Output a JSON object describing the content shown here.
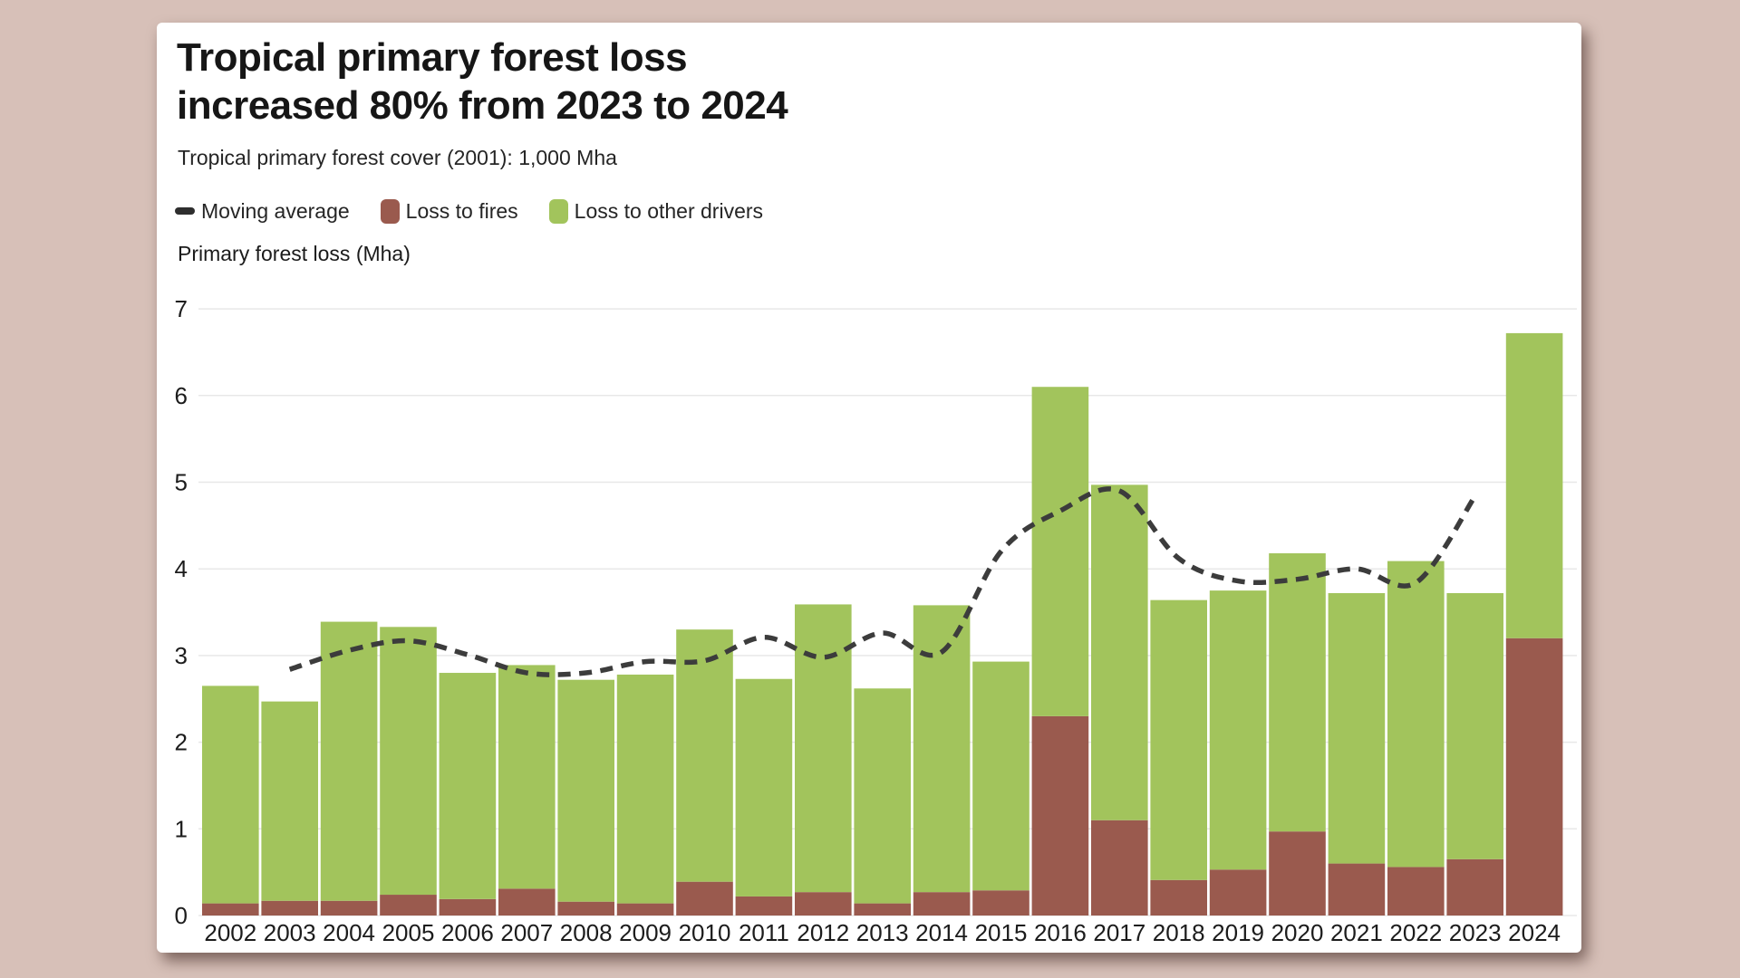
{
  "page": {
    "background_color": "#d7c0b8",
    "card_color": "#ffffff"
  },
  "header": {
    "title_line1": "Tropical primary forest loss",
    "title_line2": "increased 80% from 2023 to 2024",
    "subtitle": "Tropical primary forest cover (2001): 1,000 Mha"
  },
  "legend": {
    "items": [
      {
        "label": "Moving average",
        "marker": "dash",
        "color": "#2e2e2e"
      },
      {
        "label": "Loss to fires",
        "marker": "square",
        "color": "#9a5a4e"
      },
      {
        "label": "Loss to other drivers",
        "marker": "square",
        "color": "#a2c45c"
      }
    ]
  },
  "chart_data": {
    "type": "bar",
    "stacked": true,
    "title": "Tropical primary forest loss increased 80% from 2023 to 2024",
    "subtitle": "Tropical primary forest cover (2001): 1,000 Mha",
    "xlabel": "",
    "ylabel": "Primary forest loss (Mha)",
    "ylim": [
      0,
      7
    ],
    "yticks": [
      0,
      1,
      2,
      3,
      4,
      5,
      6,
      7
    ],
    "grid": true,
    "legend_position": "top",
    "categories": [
      "2002",
      "2003",
      "2004",
      "2005",
      "2006",
      "2007",
      "2008",
      "2009",
      "2010",
      "2011",
      "2012",
      "2013",
      "2014",
      "2015",
      "2016",
      "2017",
      "2018",
      "2019",
      "2020",
      "2021",
      "2022",
      "2023",
      "2024"
    ],
    "series": [
      {
        "name": "Loss to fires",
        "color": "#9a5a4e",
        "values": [
          0.14,
          0.17,
          0.17,
          0.24,
          0.19,
          0.31,
          0.16,
          0.14,
          0.39,
          0.22,
          0.27,
          0.14,
          0.27,
          0.29,
          2.3,
          1.1,
          0.41,
          0.53,
          0.97,
          0.6,
          0.56,
          0.65,
          3.2
        ]
      },
      {
        "name": "Loss to other drivers",
        "color": "#a2c45c",
        "values": [
          2.51,
          2.3,
          3.22,
          3.09,
          2.61,
          2.58,
          2.56,
          2.64,
          2.91,
          2.51,
          3.32,
          2.48,
          3.31,
          2.64,
          3.8,
          3.87,
          3.23,
          3.22,
          3.21,
          3.12,
          3.53,
          3.07,
          3.52
        ]
      }
    ],
    "totals": [
      2.65,
      2.47,
      3.39,
      3.33,
      2.8,
      2.89,
      2.72,
      2.78,
      3.3,
      2.73,
      3.59,
      2.62,
      3.58,
      2.93,
      6.1,
      4.97,
      3.64,
      3.75,
      4.18,
      3.72,
      4.09,
      3.72,
      6.72
    ],
    "moving_average": {
      "name": "Moving average",
      "color": "#3c3c3c",
      "line_style": "dashed",
      "window": 3,
      "years": [
        "2003",
        "2004",
        "2005",
        "2006",
        "2007",
        "2008",
        "2009",
        "2010",
        "2011",
        "2012",
        "2013",
        "2014",
        "2015",
        "2016",
        "2017",
        "2018",
        "2019",
        "2020",
        "2021",
        "2022",
        "2023"
      ],
      "values": [
        2.84,
        3.06,
        3.17,
        3.01,
        2.8,
        2.8,
        2.93,
        2.94,
        3.21,
        2.98,
        3.26,
        3.04,
        4.2,
        4.67,
        4.9,
        4.12,
        3.86,
        3.88,
        4.0,
        3.84,
        4.84
      ]
    }
  }
}
